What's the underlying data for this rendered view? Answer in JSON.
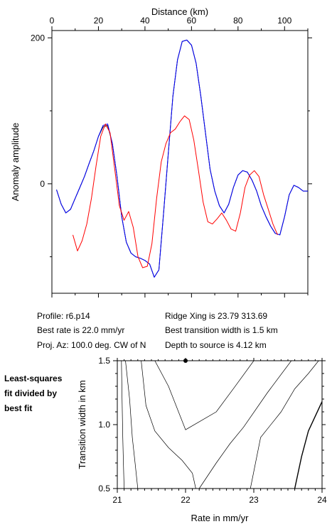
{
  "chart_data": [
    {
      "type": "line",
      "title": "",
      "xlabel": "Distance (km)",
      "ylabel": "Anomaly amplitude",
      "xlim": [
        0,
        110
      ],
      "ylim": [
        -150,
        210
      ],
      "x_ticks": [
        0,
        20,
        40,
        60,
        80,
        100
      ],
      "y_ticks": [
        0,
        200
      ],
      "grid": false,
      "series": [
        {
          "color": "#000000",
          "x": [
            2,
            4,
            6,
            8,
            10,
            12,
            14,
            16,
            18,
            20,
            22,
            24,
            26,
            28,
            30,
            32,
            34,
            36,
            38,
            40,
            42,
            44,
            46,
            48,
            50,
            52,
            54,
            56,
            58,
            60,
            62,
            64,
            66,
            68,
            70,
            72,
            74,
            76,
            78,
            80,
            82,
            84,
            86,
            88,
            90,
            92,
            94,
            96,
            98,
            100,
            102,
            104,
            106,
            108,
            110
          ],
          "y": [
            -8,
            -28,
            -40,
            -35,
            -20,
            -5,
            10,
            28,
            45,
            65,
            78,
            80,
            55,
            10,
            -45,
            -80,
            -95,
            -100,
            -102,
            -105,
            -110,
            -128,
            -118,
            -40,
            40,
            120,
            170,
            195,
            197,
            190,
            165,
            120,
            70,
            20,
            -10,
            -30,
            -40,
            -28,
            -5,
            12,
            18,
            16,
            5,
            -10,
            -30,
            -45,
            -58,
            -68,
            -70,
            -45,
            -15,
            -2,
            -5,
            -10,
            -10
          ]
        },
        {
          "color": "#0000ff",
          "x": [
            2,
            4,
            6,
            8,
            10,
            12,
            14,
            16,
            18,
            20,
            22,
            24,
            26,
            28,
            30,
            32,
            34,
            36,
            38,
            40,
            42,
            44,
            46,
            48,
            50,
            52,
            54,
            56,
            58,
            60,
            62,
            64,
            66,
            68,
            70,
            72,
            74,
            76,
            78,
            80,
            82,
            84,
            86,
            88,
            90,
            92,
            94,
            96,
            98,
            100,
            102,
            104,
            106,
            108,
            110
          ],
          "y": [
            -8,
            -28,
            -40,
            -35,
            -20,
            -5,
            10,
            28,
            45,
            65,
            80,
            82,
            55,
            10,
            -45,
            -80,
            -95,
            -100,
            -102,
            -105,
            -110,
            -128,
            -118,
            -40,
            40,
            120,
            170,
            195,
            197,
            190,
            165,
            120,
            70,
            20,
            -10,
            -30,
            -40,
            -28,
            -5,
            12,
            18,
            16,
            5,
            -10,
            -30,
            -45,
            -58,
            -68,
            -70,
            -45,
            -15,
            -2,
            -5,
            -10,
            -10
          ]
        },
        {
          "color": "#ff0000",
          "x": [
            9,
            11,
            13,
            15,
            17,
            19,
            21,
            23,
            25,
            27,
            29,
            31,
            33,
            35,
            37,
            39,
            41,
            43,
            45,
            47,
            49,
            51,
            53,
            55,
            57,
            59,
            61,
            63,
            65,
            67,
            69,
            71,
            73,
            75,
            77,
            79,
            81,
            83,
            85,
            87,
            89,
            91,
            93,
            95,
            97
          ],
          "y": [
            -70,
            -92,
            -78,
            -55,
            -20,
            25,
            65,
            82,
            70,
            20,
            -30,
            -50,
            -38,
            -60,
            -100,
            -115,
            -113,
            -82,
            -20,
            30,
            55,
            70,
            75,
            85,
            93,
            88,
            60,
            18,
            -25,
            -52,
            -55,
            -48,
            -40,
            -50,
            -62,
            -65,
            -40,
            -5,
            12,
            18,
            10,
            -15,
            -35,
            -55,
            -70
          ]
        }
      ]
    },
    {
      "type": "contour",
      "title": "",
      "xlabel": "Rate in mm/yr",
      "ylabel": "Transition width in km",
      "xlim": [
        21,
        24
      ],
      "ylim": [
        0.5,
        1.5
      ],
      "x_ticks": [
        21,
        22,
        23,
        24
      ],
      "y_ticks": [
        0.5,
        1.0,
        1.5
      ],
      "best_fit_point": [
        22.0,
        1.5
      ],
      "contours": [
        {
          "x": [
            21.06,
            21.07,
            21.08,
            21.09,
            21.1
          ],
          "y": [
            1.5,
            1.2,
            0.9,
            0.7,
            0.5
          ]
        },
        {
          "x": [
            21.12,
            21.18,
            21.22,
            21.26,
            21.3
          ],
          "y": [
            1.5,
            1.2,
            0.9,
            0.7,
            0.5
          ]
        },
        {
          "x": [
            21.35,
            21.42,
            21.55,
            21.75,
            21.95,
            22.1,
            22.15
          ],
          "y": [
            1.5,
            1.15,
            0.95,
            0.82,
            0.72,
            0.62,
            0.5
          ]
        },
        {
          "x": [
            21.55,
            21.75,
            22.0,
            22.45,
            22.7,
            23.0
          ],
          "y": [
            1.5,
            1.3,
            0.96,
            1.1,
            1.28,
            1.5
          ]
        },
        {
          "x": [
            22.2,
            22.45,
            22.65,
            22.85,
            23.2,
            23.55
          ],
          "y": [
            0.5,
            0.7,
            0.85,
            0.98,
            1.25,
            1.5
          ]
        },
        {
          "x": [
            22.95,
            23.1,
            23.4,
            23.6,
            23.8,
            23.95
          ],
          "y": [
            0.5,
            0.9,
            1.1,
            1.28,
            1.4,
            1.5
          ]
        },
        {
          "x": [
            23.6,
            23.7,
            23.8,
            24.0
          ],
          "y": [
            0.5,
            0.75,
            0.95,
            1.18
          ],
          "bold": true
        }
      ]
    }
  ],
  "info": {
    "profile": "Profile: r6.p14",
    "best_rate": "Best rate is 22.0 mm/yr",
    "proj_az": "Proj. Az: 100.0 deg. CW of N",
    "ridge_xing": "Ridge Xing is 23.79 313.69",
    "best_transition": "Best transition width is 1.5 km",
    "depth": "Depth to source is   4.12 km"
  },
  "note": {
    "line1": "Least-squares",
    "line2": "fit divided by",
    "line3": "best fit"
  }
}
